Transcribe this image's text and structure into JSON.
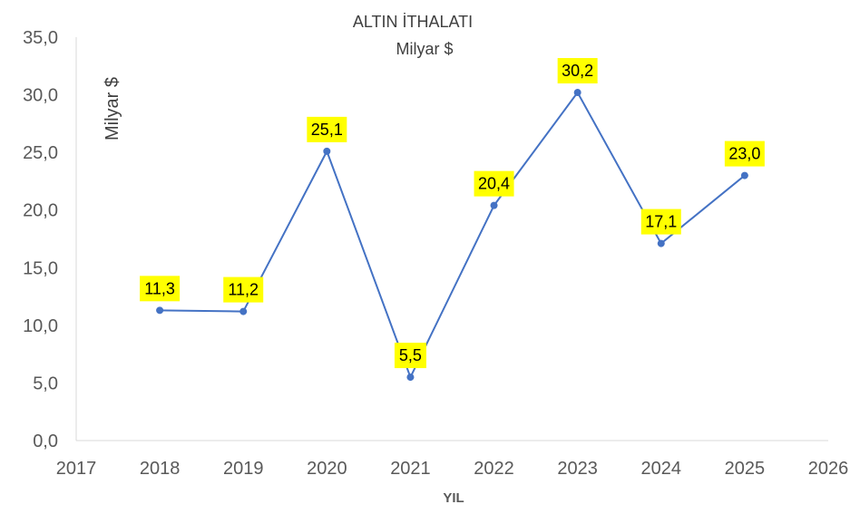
{
  "chart_data": {
    "type": "line",
    "title": "ALTIN İTHALATI",
    "subtitle": "Milyar $",
    "xlabel": "YIL",
    "ylabel": "Milyar  $",
    "x": [
      2018,
      2019,
      2020,
      2021,
      2022,
      2023,
      2024,
      2025
    ],
    "series": [
      {
        "values": [
          11.3,
          11.2,
          25.1,
          5.5,
          20.4,
          30.2,
          17.1,
          23.0
        ],
        "labels": [
          "11,3",
          "11,2",
          "25,1",
          "5,5",
          "20,4",
          "30,2",
          "17,1",
          "23,0"
        ],
        "color": "#4472C4"
      }
    ],
    "xlim": [
      2017,
      2026
    ],
    "ylim": [
      0,
      35
    ],
    "x_ticks": [
      "2017",
      "2018",
      "2019",
      "2020",
      "2021",
      "2022",
      "2023",
      "2024",
      "2025",
      "2026"
    ],
    "y_ticks": [
      "0,0",
      "5,0",
      "10,0",
      "15,0",
      "20,0",
      "25,0",
      "30,0",
      "35,0"
    ],
    "label_background": "#FFFF00",
    "axis_color": "#D9D9D9",
    "grid": false,
    "legend": "none"
  }
}
